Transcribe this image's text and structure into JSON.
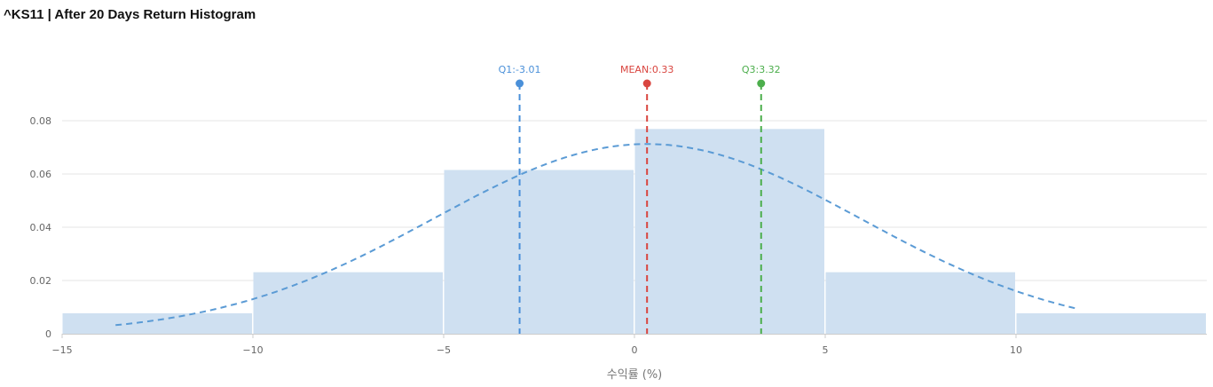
{
  "chart_data": {
    "type": "bar",
    "title": "^KS11 | After 20 Days Return Histogram",
    "xlabel": "수익률 (%)",
    "ylabel": "",
    "xlim": [
      -15,
      15
    ],
    "ylim": [
      0,
      0.08
    ],
    "x_ticks": [
      -15,
      -10,
      -5,
      0,
      5,
      10
    ],
    "x_tick_labels": [
      "−15",
      "−10",
      "−5",
      "0",
      "5",
      "10"
    ],
    "y_ticks": [
      0,
      0.02,
      0.04,
      0.06,
      0.08
    ],
    "y_tick_labels": [
      "0",
      "0.02",
      "0.04",
      "0.06",
      "0.08"
    ],
    "bins": [
      {
        "start": -15,
        "end": -10,
        "value": 0.0077
      },
      {
        "start": -10,
        "end": -5,
        "value": 0.0231
      },
      {
        "start": -5,
        "end": 0,
        "value": 0.0615
      },
      {
        "start": 0,
        "end": 5,
        "value": 0.0769
      },
      {
        "start": 5,
        "end": 10,
        "value": 0.0231
      },
      {
        "start": 10,
        "end": 15,
        "value": 0.0077
      }
    ],
    "density_curve": {
      "mean": 0.33,
      "std": 5.6,
      "x_range": [
        -13.6,
        11.6
      ]
    },
    "markers": [
      {
        "label": "Q1:-3.01",
        "x": -3.01,
        "color": "#4a90d9"
      },
      {
        "label": "MEAN:0.33",
        "x": 0.33,
        "color": "#d9453f"
      },
      {
        "label": "Q3:3.32",
        "x": 3.32,
        "color": "#4cae4c"
      }
    ],
    "grid": true,
    "colors": {
      "bar": "#cfe0f1",
      "curve": "#5b9bd5",
      "grid": "#e6e6e6",
      "axis": "#cccccc"
    }
  }
}
